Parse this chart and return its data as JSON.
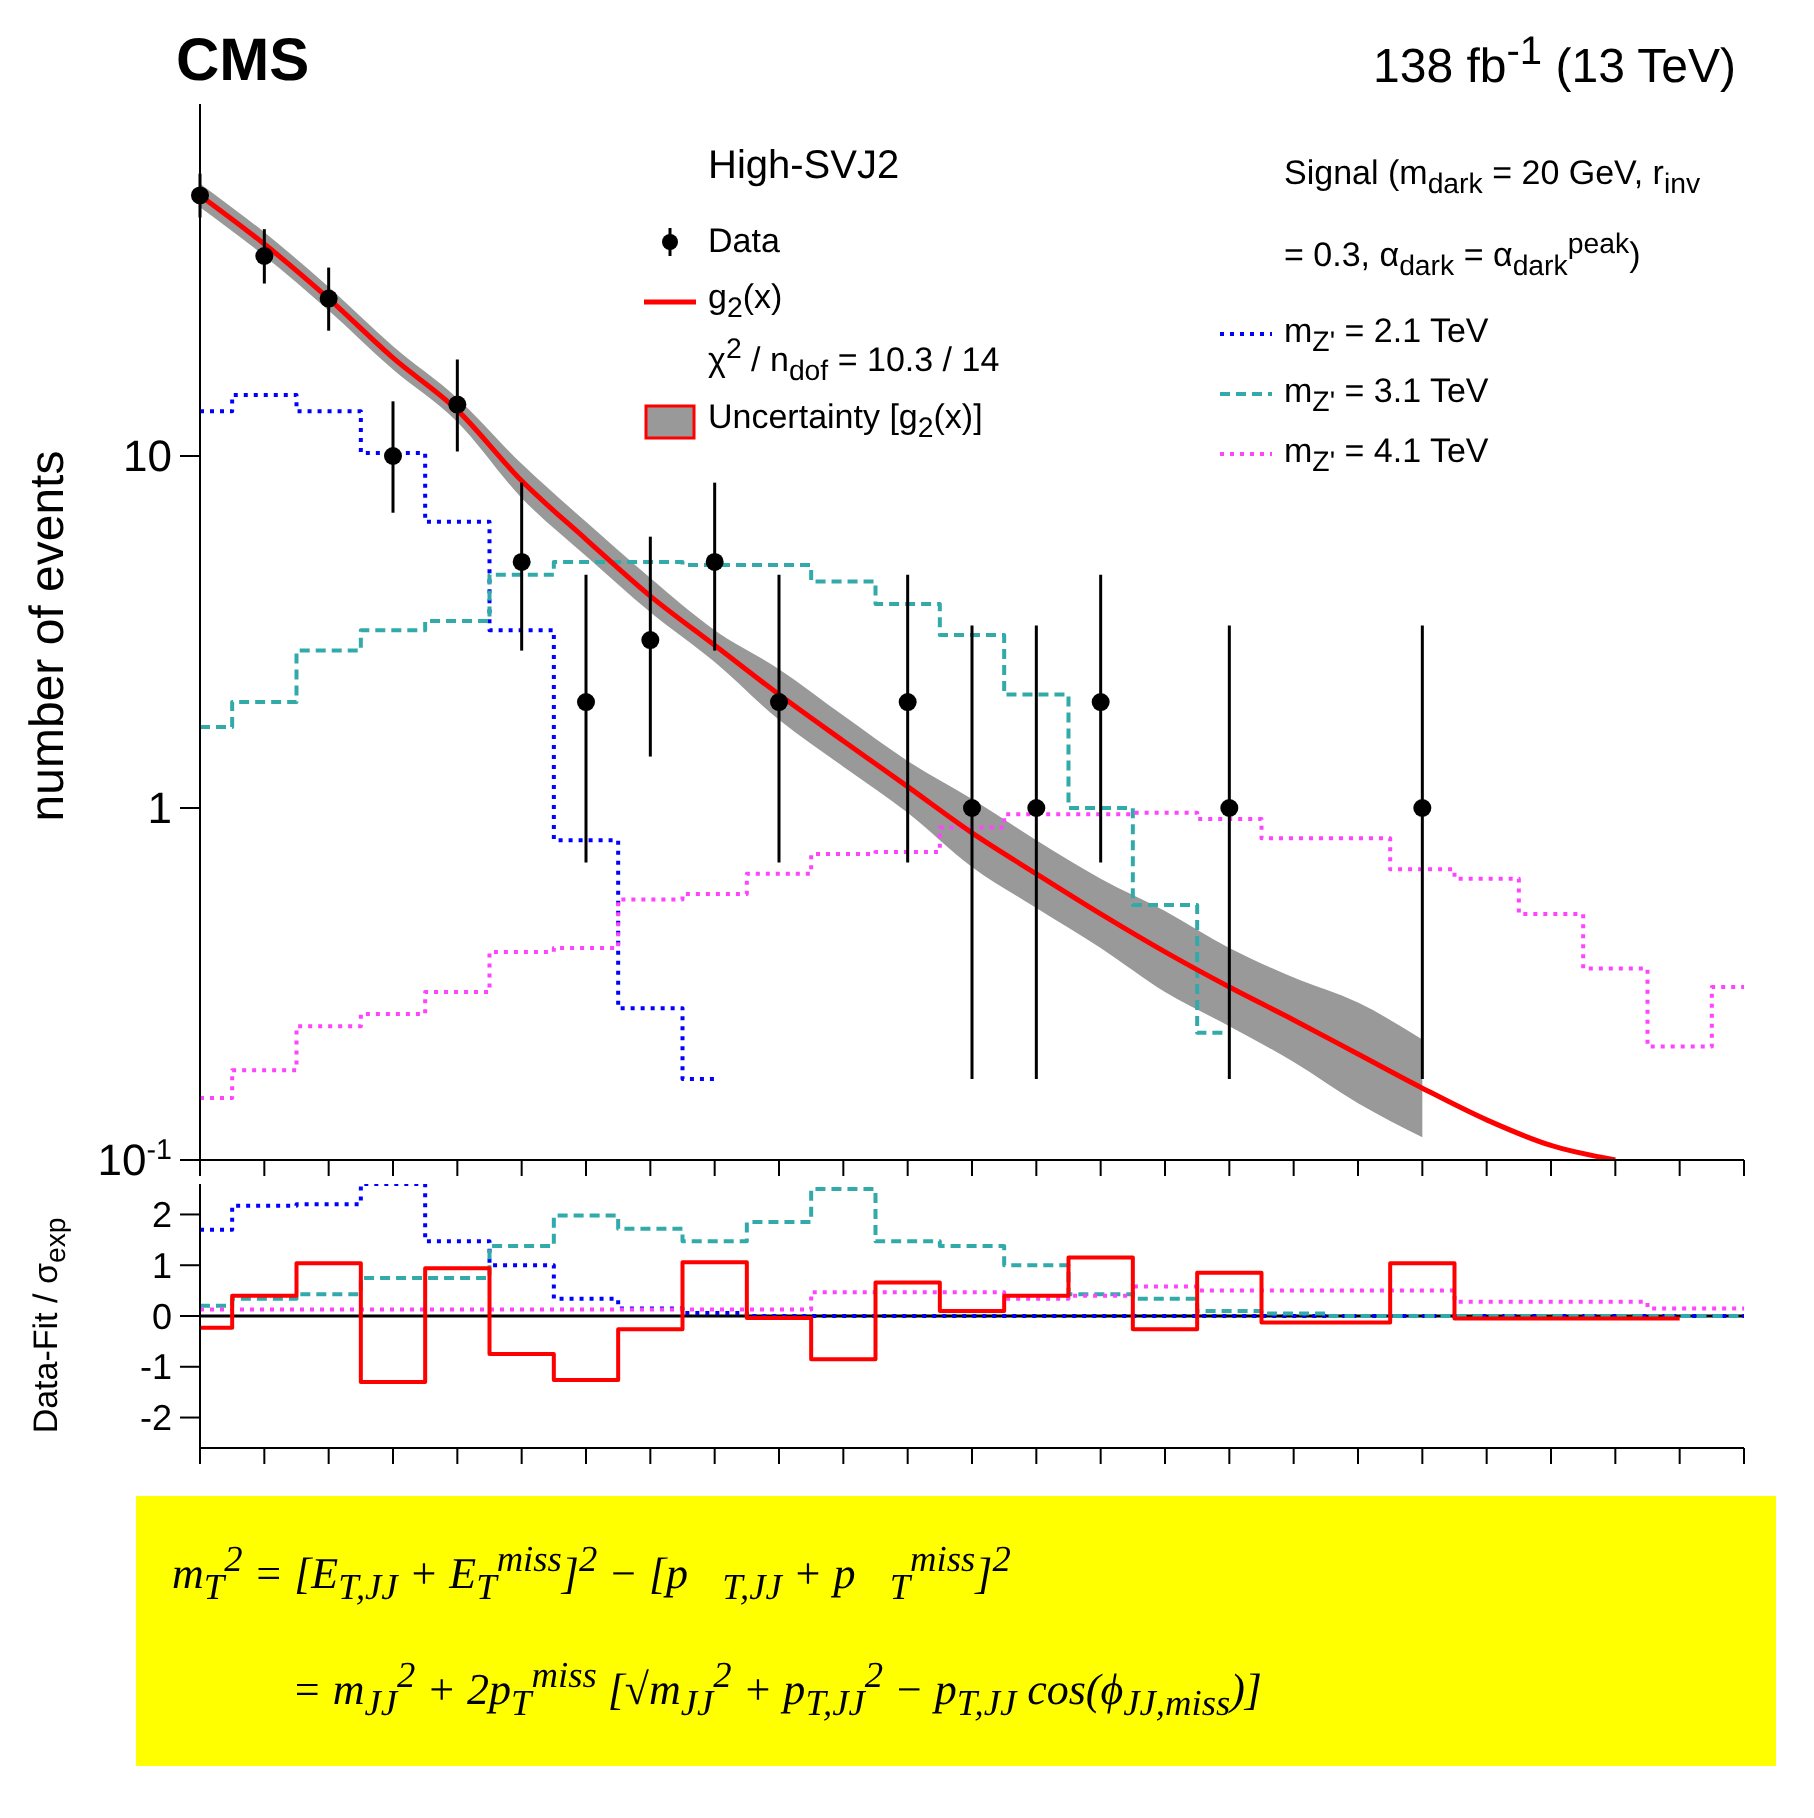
{
  "chart_data": [
    {
      "type": "step",
      "title": "CMS",
      "subtitle": "138 fb$^{-1}$ (13 TeV)",
      "ylabel": "number of events",
      "legend_title": "High-SVJ2",
      "legend": "top right",
      "log": true,
      "grid": false,
      "annotations": [
        "χ$^{2}$ / n$_{dof}$ = 10.3 / 14",
        "Signal (m$_{dark}$ = 20 GeV, r$_{inv}$ = 0.3, α$_{dark}$ = α$_{dark}$$^{peak}$)",
        "Uncertainty [g$_{2}$(x)]"
      ],
      "categories": [
        null,
        null,
        null,
        null,
        null,
        null,
        null,
        null,
        null,
        null,
        null,
        null,
        null,
        null,
        null,
        null,
        null,
        null,
        null,
        null,
        null,
        null,
        null,
        null,
        null
      ],
      "ylim": [
        0.1,
        100
      ],
      "yticks": [
        {
          "value": 0.1,
          "label": "10$^{-1}$"
        },
        1,
        10
      ],
      "series": [
        {
          "name": "m$_{Z'}$ = 2.1 TeV",
          "color": "#0000ff",
          "line_style": "dotted",
          "values": [
            13.4,
            14.9,
            13.4,
            10.2,
            6.5,
            3.2,
            0.81,
            0.27,
            0.17,
            null,
            null,
            null,
            null,
            null,
            null,
            null,
            null,
            null,
            null,
            null,
            null,
            null,
            null,
            null,
            null
          ]
        },
        {
          "name": "m$_{Z'}$ = 3.1 TeV",
          "color": "#33aaaa",
          "line_style": "dashed",
          "values": [
            1.7,
            2.0,
            2.8,
            3.2,
            3.4,
            4.6,
            5.0,
            5.0,
            4.9,
            4.9,
            4.4,
            3.8,
            3.1,
            2.1,
            1.0,
            0.53,
            0.23,
            null,
            null,
            null,
            null,
            null,
            null,
            null,
            null
          ]
        },
        {
          "name": "m$_{Z'}$ = 4.1 TeV",
          "color": "#ff44ff",
          "line_style": "dotted",
          "values": [
            0.15,
            0.18,
            0.24,
            0.26,
            0.3,
            0.39,
            0.4,
            0.55,
            0.57,
            0.65,
            0.74,
            0.75,
            0.88,
            0.96,
            0.96,
            0.97,
            0.93,
            0.82,
            0.82,
            0.67,
            0.63,
            0.5,
            0.35,
            0.21,
            0.31
          ]
        },
        {
          "type": "line",
          "name": "g$_{2}$(x)",
          "color": "#ff0000",
          "line_style": "solid",
          "values": [
            55,
            40,
            28,
            19,
            13.5,
            8.5,
            5.8,
            4.0,
            2.9,
            2.1,
            1.55,
            1.15,
            0.85,
            0.65,
            0.5,
            0.39,
            0.31,
            0.25,
            0.2,
            0.16,
            0.13,
            0.11,
            0.1,
            null,
            null
          ],
          "lower": [
            50.9,
            37,
            25.9,
            17.6,
            12.5,
            7.6,
            5.2,
            3.6,
            2.6,
            1.78,
            1.31,
            0.97,
            0.68,
            0.52,
            0.4,
            0.3,
            0.24,
            0.19,
            0.145,
            0.116,
            null,
            null,
            null,
            null,
            null
          ],
          "upper": [
            59.4,
            43.2,
            30.2,
            20.5,
            14.6,
            9.5,
            6.5,
            4.5,
            3.2,
            2.48,
            1.83,
            1.36,
            1.06,
            0.81,
            0.63,
            0.51,
            0.4,
            0.33,
            0.28,
            0.22,
            null,
            null,
            null,
            null,
            null
          ]
        },
        {
          "type": "scatter",
          "name": "Data",
          "color": "#000000",
          "marker": "circle",
          "values": [
            55,
            37,
            28,
            10,
            14,
            5,
            2,
            3,
            5,
            2,
            null,
            2,
            1,
            1,
            2,
            null,
            1,
            null,
            null,
            1,
            null,
            null,
            null,
            null,
            null
          ],
          "errors": [
            [
              47.6,
              63.4
            ],
            [
              30.9,
              44.1
            ],
            [
              22.7,
              34.3
            ],
            [
              6.9,
              14.3
            ],
            [
              10.3,
              18.8
            ],
            [
              2.8,
              8.4
            ],
            [
              0.7,
              4.6
            ],
            [
              1.4,
              5.9
            ],
            [
              2.8,
              8.4
            ],
            [
              0.7,
              4.6
            ],
            null,
            [
              0.7,
              4.6
            ],
            [
              0.17,
              3.3
            ],
            [
              0.17,
              3.3
            ],
            [
              0.7,
              4.6
            ],
            null,
            [
              0.17,
              3.3
            ],
            null,
            null,
            [
              0.17,
              3.3
            ],
            null,
            null,
            null,
            null,
            null
          ]
        }
      ]
    },
    {
      "type": "step",
      "ylabel": "Data-Fit / σ$_{exp}$",
      "grid": false,
      "categories": [
        null,
        null,
        null,
        null,
        null,
        null,
        null,
        null,
        null,
        null,
        null,
        null,
        null,
        null,
        null,
        null,
        null,
        null,
        null,
        null,
        null,
        null,
        null,
        null,
        null
      ],
      "ylim": [
        -2.6,
        2.6
      ],
      "yticks": [
        -2,
        -1,
        0,
        1,
        2
      ],
      "ref_lines": [
        {
          "axis": "y",
          "value": 0,
          "color": "#000000"
        }
      ],
      "annotations": [
        "m$_{T}$$^{2}$ = [E$_{T,JJ}$ + E$_{T}$$^{miss}$]$^{2}$ − [p⃗$_{T,JJ}$ + p⃗$_{T}$$^{miss}$]$^{2}$",
        "= m$_{JJ}$$^{2}$ + 2p$_{T}$$^{miss}$ [√m$_{JJ}$$^{2}$ + p$_{T,JJ}$$^{2}$ − p$_{T,JJ}$ cos(ϕ$_{JJ,miss}$)]"
      ],
      "series": [
        {
          "color": "#0000ff",
          "line_style": "dotted",
          "values": [
            1.7,
            2.17,
            2.2,
            2.6,
            1.47,
            1.0,
            0.34,
            0.15,
            0.06,
            0,
            0,
            0,
            0,
            0,
            0,
            0,
            0,
            0,
            0,
            0,
            0,
            0,
            0,
            0,
            0
          ]
        },
        {
          "color": "#33aaaa",
          "line_style": "dashed",
          "values": [
            0.2,
            0.34,
            0.43,
            0.75,
            0.75,
            1.38,
            1.98,
            1.72,
            1.47,
            1.85,
            2.5,
            1.47,
            1.38,
            1.0,
            0.43,
            0.34,
            0.1,
            0.05,
            0,
            0,
            0,
            0,
            0,
            0,
            0
          ]
        },
        {
          "color": "#ff44ff",
          "line_style": "dotted",
          "values": [
            0.13,
            0.13,
            0.13,
            0.13,
            0.13,
            0.13,
            0.13,
            0.13,
            0.13,
            0.13,
            0.47,
            0.47,
            0.47,
            0.34,
            0.4,
            0.58,
            0.5,
            0.5,
            0.5,
            0.5,
            0.28,
            0.28,
            0.28,
            0.15,
            0.15
          ]
        },
        {
          "color": "#ff0000",
          "line_style": "solid",
          "values": [
            -0.23,
            0.4,
            1.04,
            -1.3,
            0.94,
            -0.75,
            -1.26,
            -0.26,
            1.06,
            -0.04,
            -0.85,
            0.66,
            0.1,
            0.4,
            1.15,
            -0.26,
            0.85,
            -0.13,
            -0.13,
            1.04,
            -0.05,
            -0.05,
            -0.05,
            -0.05,
            null
          ]
        }
      ]
    }
  ]
}
